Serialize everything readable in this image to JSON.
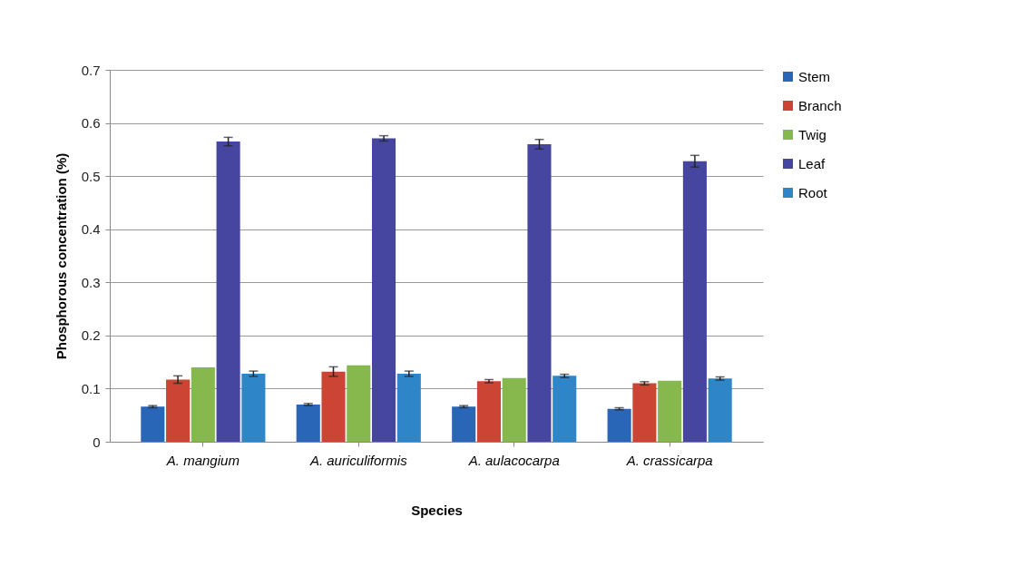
{
  "chart_data": {
    "type": "bar",
    "xlabel": "Species",
    "ylabel": "Phosphorous concentration (%)",
    "categories": [
      "A. mangium",
      "A. auriculiformis",
      "A. aulacocarpa",
      "A. crassicarpa"
    ],
    "series": [
      {
        "name": "Stem",
        "color": "#2a66b8",
        "values": [
          0.066,
          0.07,
          0.066,
          0.062
        ],
        "errors": [
          0.002,
          0.002,
          0.002,
          0.002
        ]
      },
      {
        "name": "Branch",
        "color": "#cc4433",
        "values": [
          0.117,
          0.132,
          0.114,
          0.11
        ],
        "errors": [
          0.007,
          0.009,
          0.003,
          0.003
        ]
      },
      {
        "name": "Twig",
        "color": "#86b84e",
        "values": [
          0.14,
          0.144,
          0.12,
          0.115
        ]
      },
      {
        "name": "Leaf",
        "color": "#4646a0",
        "values": [
          0.565,
          0.571,
          0.56,
          0.528
        ],
        "errors": [
          0.008,
          0.005,
          0.009,
          0.011
        ]
      },
      {
        "name": "Root",
        "color": "#2e86c8",
        "values": [
          0.128,
          0.128,
          0.124,
          0.119
        ],
        "errors": [
          0.005,
          0.005,
          0.003,
          0.003
        ]
      }
    ],
    "ylim": [
      0,
      0.7
    ],
    "yticks": [
      0,
      0.1,
      0.2,
      0.3,
      0.4,
      0.5,
      0.6,
      0.7
    ],
    "grid": "y",
    "legend": "right"
  }
}
